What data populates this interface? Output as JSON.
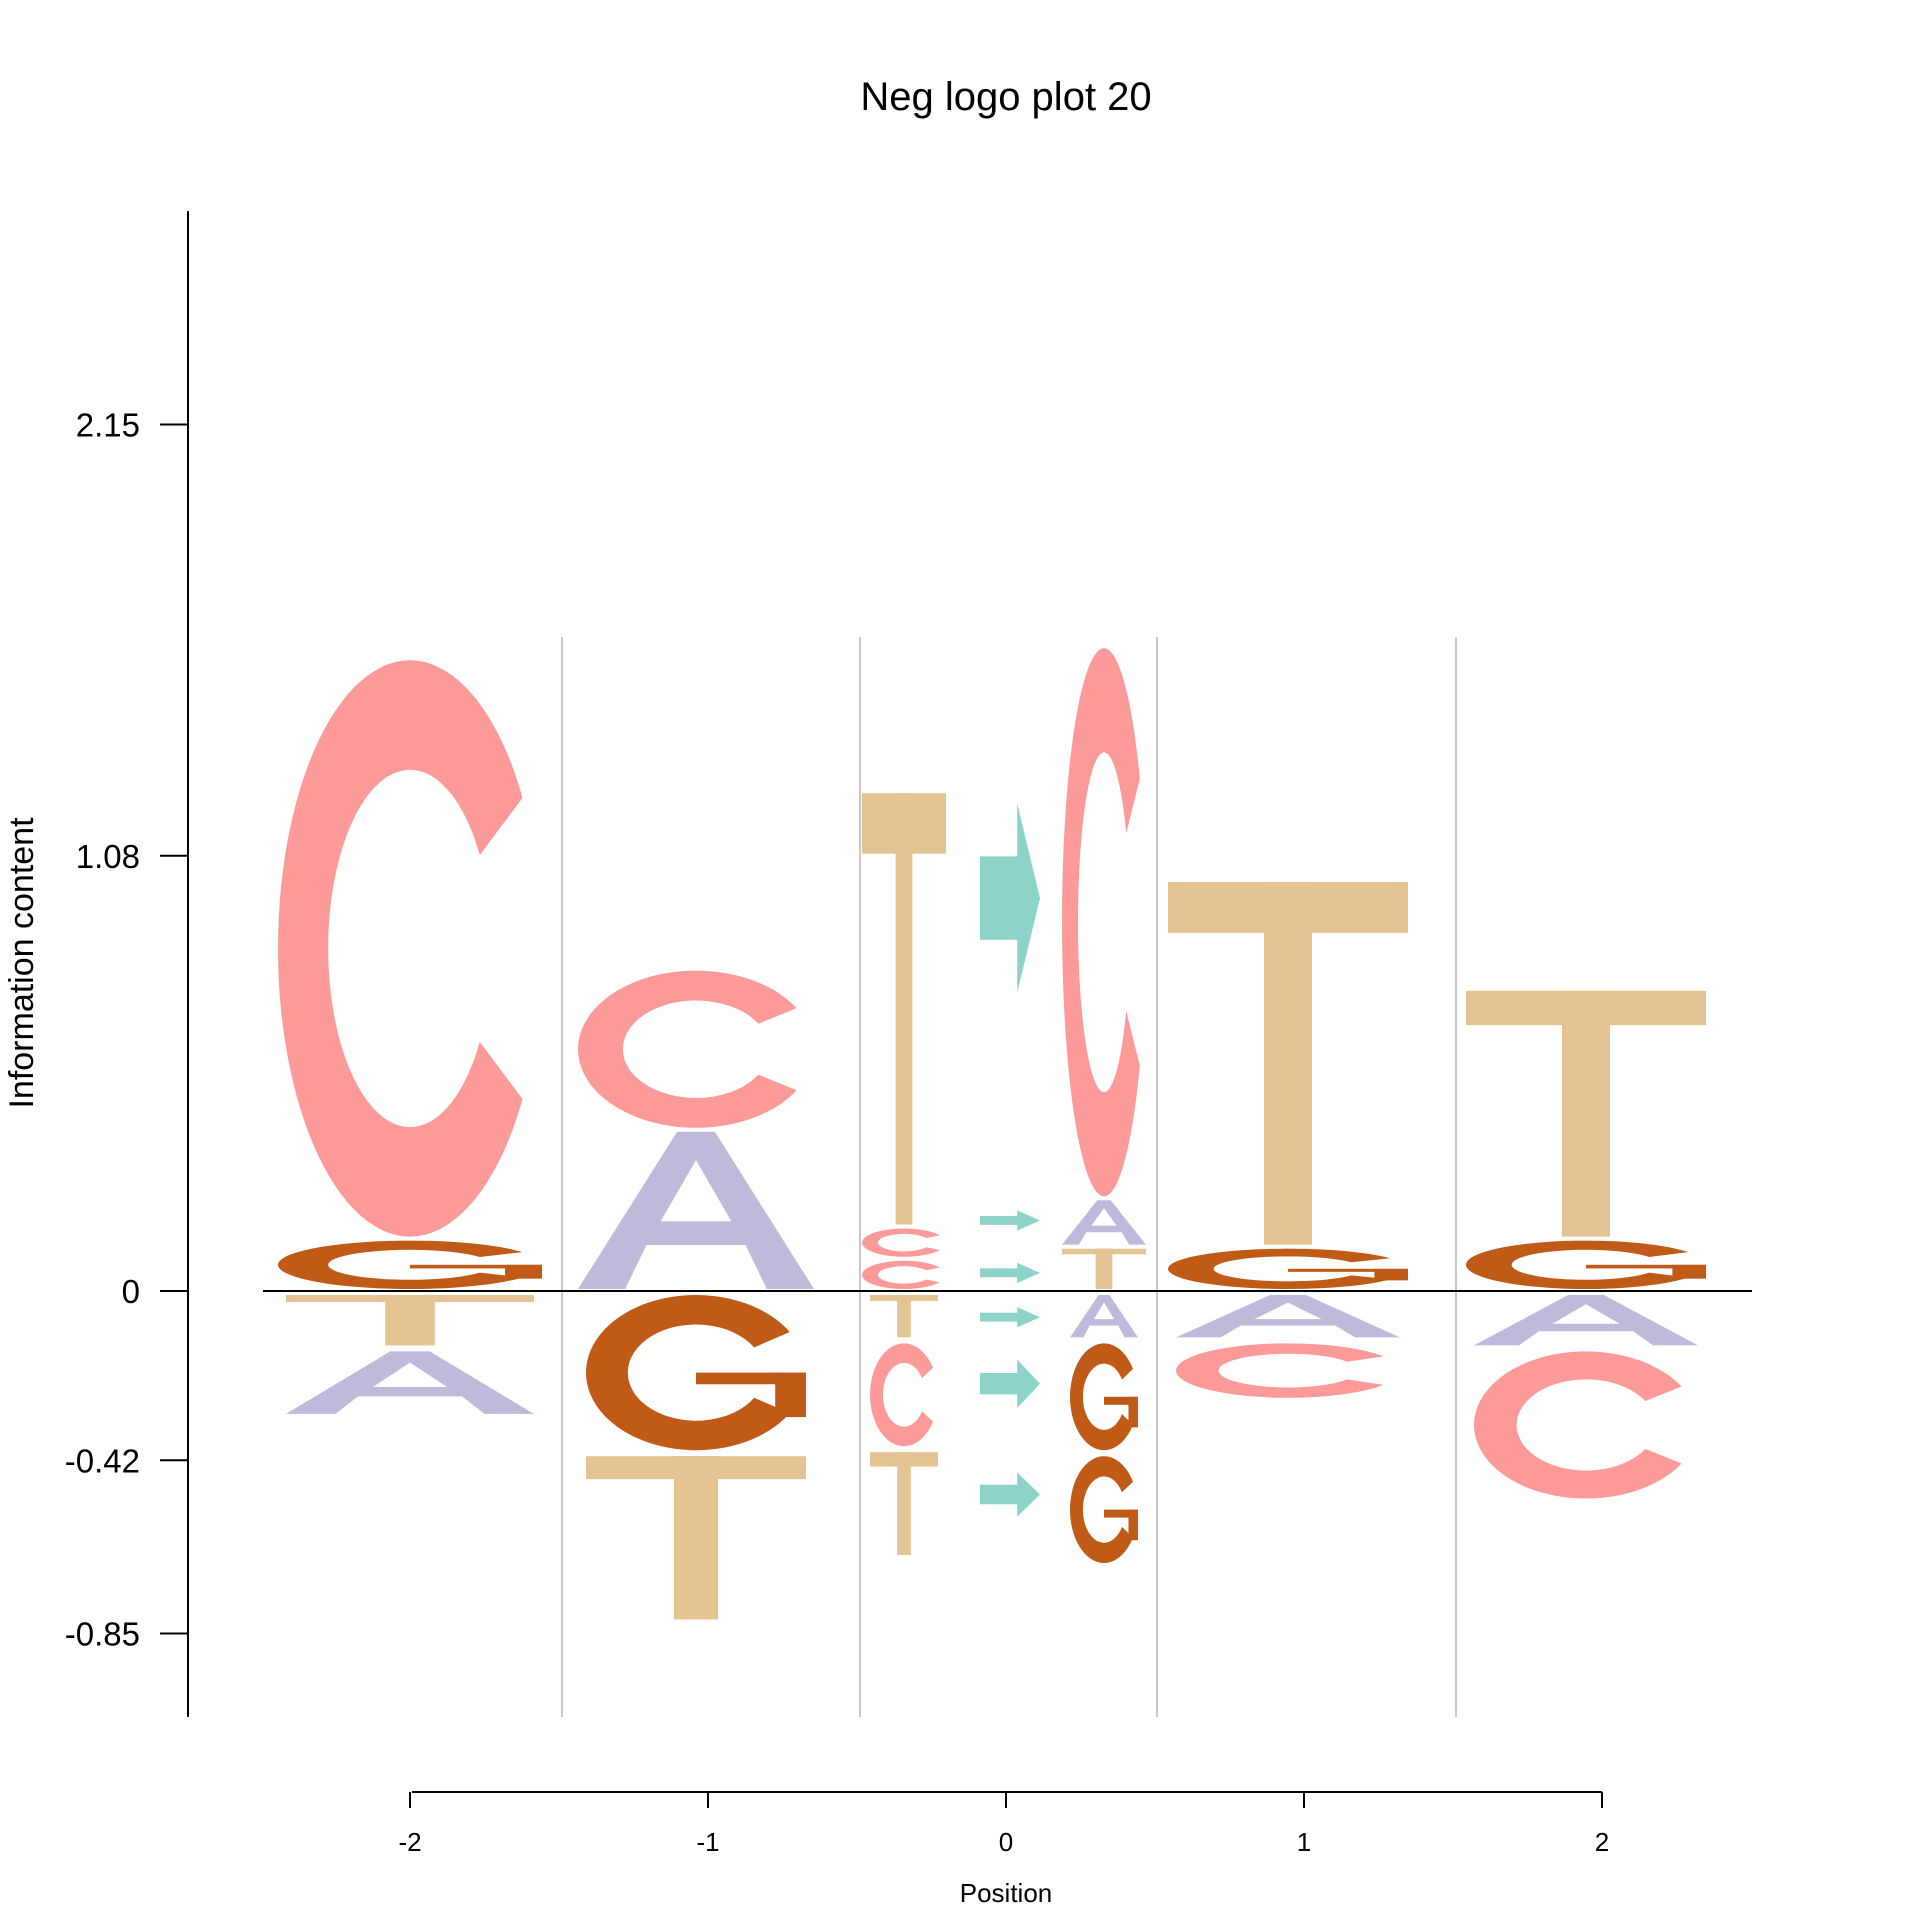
{
  "chart_data": {
    "type": "sequence-logo",
    "title": "Neg logo plot 20",
    "xlabel": "Position",
    "ylabel": "Information content",
    "ylim": [
      -0.85,
      2.15
    ],
    "y_ticks": [
      "2.15",
      "1.08",
      "0",
      "-0.42",
      "-0.85"
    ],
    "x_ticks": [
      "-2",
      "-1",
      "0",
      "1",
      "2"
    ],
    "colors": {
      "A": "#BEBADA",
      "C": "#FB9A99",
      "G": "#BF5B17",
      "T": "#E3C492",
      "arrow": "#8DD3C7"
    },
    "columns": [
      {
        "x": -2,
        "positive": [
          {
            "letter": "G",
            "height": 0.13
          },
          {
            "letter": "C",
            "height": 1.44
          }
        ],
        "negative": [
          {
            "letter": "T",
            "height": 0.14
          },
          {
            "letter": "A",
            "height": 0.17
          }
        ]
      },
      {
        "x": -1,
        "positive": [
          {
            "letter": "A",
            "height": 0.4
          },
          {
            "letter": "C",
            "height": 0.4
          }
        ],
        "negative": [
          {
            "letter": "G",
            "height": 0.4
          },
          {
            "letter": "T",
            "height": 0.42
          }
        ]
      },
      {
        "x": -0.5,
        "positive": [
          {
            "letter": "C",
            "height": 0.08
          },
          {
            "letter": "C",
            "height": 0.08
          },
          {
            "letter": "T",
            "height": 1.08
          }
        ],
        "negative": [
          {
            "letter": "T",
            "height": 0.12
          },
          {
            "letter": "C",
            "height": 0.27
          },
          {
            "letter": "T",
            "height": 0.27
          }
        ]
      },
      {
        "x": 0,
        "arrows_positive": [
          {
            "y0": 0.15,
            "y1": 0.2
          },
          {
            "y0": 0.02,
            "y1": 0.07
          },
          {
            "y0": 0.74,
            "y1": 1.21
          }
        ],
        "arrows_negative": [
          {
            "y0": -0.04,
            "y1": -0.09
          },
          {
            "y0": -0.17,
            "y1": -0.29
          },
          {
            "y0": -0.45,
            "y1": -0.56
          }
        ]
      },
      {
        "x": 0.5,
        "positive": [
          {
            "letter": "T",
            "height": 0.11
          },
          {
            "letter": "A",
            "height": 0.12
          },
          {
            "letter": "C",
            "height": 1.37
          }
        ],
        "negative": [
          {
            "letter": "A",
            "height": 0.12
          },
          {
            "letter": "G",
            "height": 0.28
          },
          {
            "letter": "G",
            "height": 0.28
          }
        ]
      },
      {
        "x": 1,
        "positive": [
          {
            "letter": "G",
            "height": 0.11
          },
          {
            "letter": "T",
            "height": 0.91
          }
        ],
        "negative": [
          {
            "letter": "A",
            "height": 0.12
          },
          {
            "letter": "C",
            "height": 0.15
          }
        ]
      },
      {
        "x": 2,
        "positive": [
          {
            "letter": "G",
            "height": 0.13
          },
          {
            "letter": "T",
            "height": 0.62
          }
        ],
        "negative": [
          {
            "letter": "A",
            "height": 0.14
          },
          {
            "letter": "C",
            "height": 0.38
          }
        ]
      }
    ]
  }
}
